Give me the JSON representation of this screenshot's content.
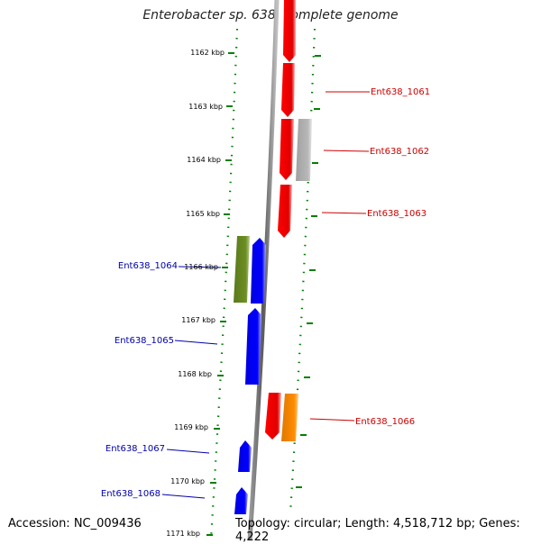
{
  "title": "Enterobacter sp. 638, complete genome",
  "footer": {
    "accession": "Accession: NC_009436",
    "topology": "Topology: circular; Length: 4,518,712 bp; Genes: 4,222"
  },
  "ruler": {
    "labels": [
      "1162 kbp",
      "1163 kbp",
      "1164 kbp",
      "1165 kbp",
      "1166 kbp",
      "1167 kbp",
      "1168 kbp",
      "1169 kbp",
      "1170 kbp",
      "1171 kbp"
    ]
  },
  "genes": {
    "right": [
      "Ent638_1061",
      "Ent638_1062",
      "Ent638_1063",
      "Ent638_1066"
    ],
    "left": [
      "Ent638_1064",
      "Ent638_1065",
      "Ent638_1067",
      "Ent638_1068"
    ]
  },
  "colors": {
    "forward_cds": "#ff0000",
    "reverse_cds": "#0000ff",
    "grey_feature": "#b0b0b0",
    "green_feature": "#6b8e23",
    "orange_feature": "#ff8c00",
    "tick": "#008000",
    "backbone": "#808080",
    "right_label": "#cc0000",
    "left_label": "#0000aa"
  }
}
